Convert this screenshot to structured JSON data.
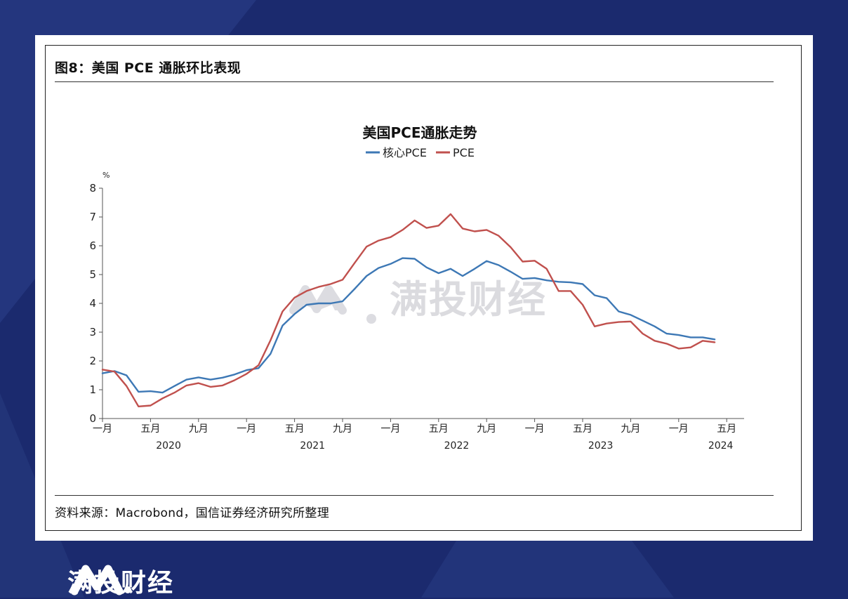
{
  "figure": {
    "title": "图8：美国 PCE 通胀环比表现",
    "source": "资料来源：Macrobond，国信证券经济研究所整理"
  },
  "watermark": {
    "text": "满投财经"
  },
  "footer": {
    "brand": "满投财经"
  },
  "colors": {
    "background": "#1b2a6e",
    "core_pce": "#3d78b5",
    "pce": "#c0504d",
    "watermark": "#d8d8dc"
  },
  "chart_data": {
    "type": "line",
    "title": "美国PCE通胀走势",
    "unit": "%",
    "ylim": [
      0,
      8
    ],
    "yticks": [
      0,
      1,
      2,
      3,
      4,
      5,
      6,
      7,
      8
    ],
    "legend": {
      "position": "top-center"
    },
    "grid": false,
    "x_start": "2020-01",
    "x_tick_labels": [
      {
        "index": 0,
        "label": "一月"
      },
      {
        "index": 4,
        "label": "五月"
      },
      {
        "index": 8,
        "label": "九月"
      },
      {
        "index": 12,
        "label": "一月"
      },
      {
        "index": 16,
        "label": "五月"
      },
      {
        "index": 20,
        "label": "九月"
      },
      {
        "index": 24,
        "label": "一月"
      },
      {
        "index": 28,
        "label": "五月"
      },
      {
        "index": 32,
        "label": "九月"
      },
      {
        "index": 36,
        "label": "一月"
      },
      {
        "index": 40,
        "label": "五月"
      },
      {
        "index": 44,
        "label": "九月"
      },
      {
        "index": 48,
        "label": "一月"
      },
      {
        "index": 52,
        "label": "五月"
      }
    ],
    "x_year_labels": [
      {
        "index": 5.5,
        "label": "2020"
      },
      {
        "index": 17.5,
        "label": "2021"
      },
      {
        "index": 29.5,
        "label": "2022"
      },
      {
        "index": 41.5,
        "label": "2023"
      },
      {
        "index": 51.5,
        "label": "2024"
      }
    ],
    "series": [
      {
        "name": "核心PCE",
        "color": "#3d78b5",
        "values": [
          1.57,
          1.65,
          1.5,
          0.93,
          0.95,
          0.9,
          1.13,
          1.35,
          1.43,
          1.35,
          1.42,
          1.53,
          1.68,
          1.75,
          2.25,
          3.23,
          3.63,
          3.95,
          4.0,
          4.0,
          4.07,
          4.5,
          4.95,
          5.23,
          5.37,
          5.57,
          5.55,
          5.25,
          5.05,
          5.2,
          4.95,
          5.2,
          5.47,
          5.33,
          5.1,
          4.85,
          4.88,
          4.8,
          4.75,
          4.73,
          4.67,
          4.28,
          4.18,
          3.72,
          3.6,
          3.4,
          3.2,
          2.95,
          2.9,
          2.82,
          2.82,
          2.75
        ]
      },
      {
        "name": "PCE",
        "color": "#c0504d",
        "values": [
          1.7,
          1.63,
          1.13,
          0.42,
          0.45,
          0.7,
          0.9,
          1.15,
          1.23,
          1.1,
          1.15,
          1.33,
          1.55,
          1.85,
          2.72,
          3.72,
          4.2,
          4.43,
          4.57,
          4.67,
          4.82,
          5.4,
          5.97,
          6.18,
          6.3,
          6.55,
          6.88,
          6.62,
          6.7,
          7.1,
          6.6,
          6.5,
          6.55,
          6.35,
          5.95,
          5.45,
          5.48,
          5.2,
          4.43,
          4.43,
          3.95,
          3.2,
          3.3,
          3.35,
          3.37,
          2.95,
          2.7,
          2.6,
          2.43,
          2.47,
          2.7,
          2.65
        ]
      }
    ]
  }
}
